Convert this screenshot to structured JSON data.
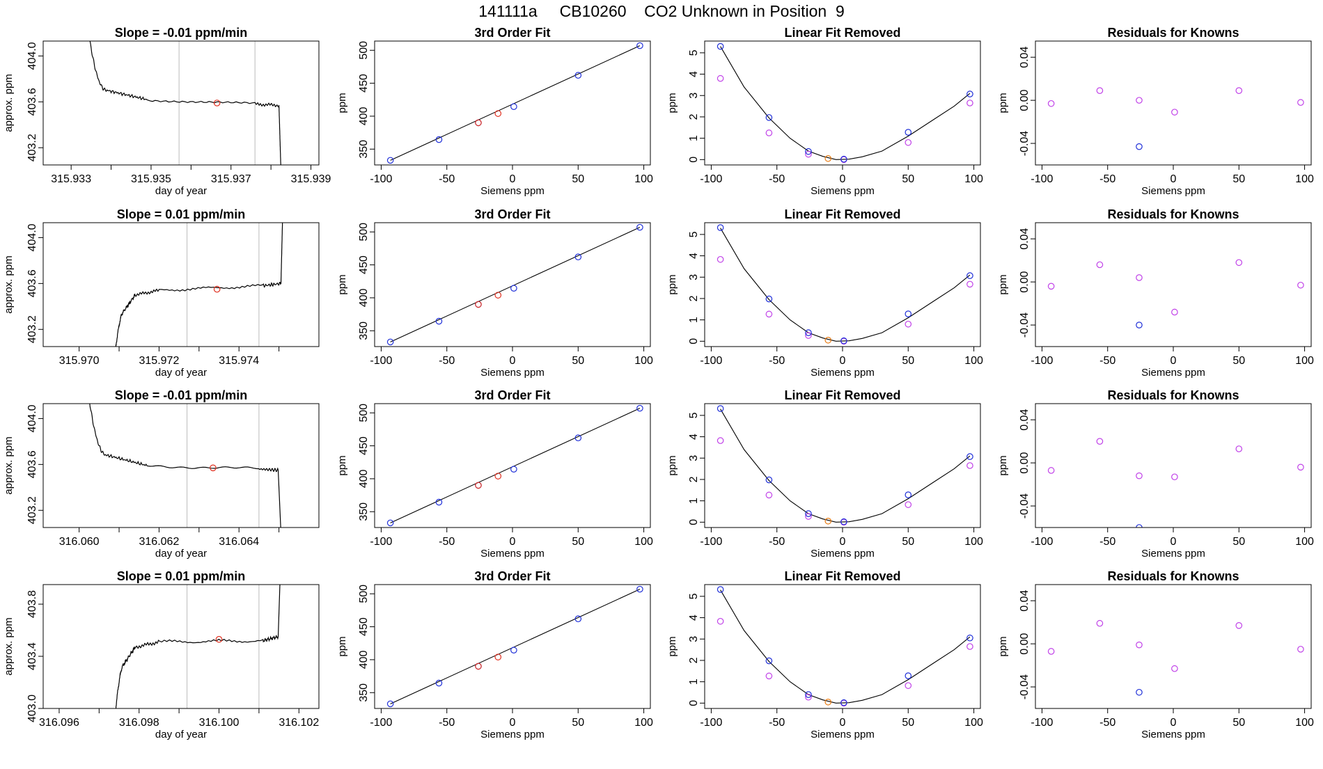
{
  "title": "141111a     CB10260    CO2 Unknown in Position  9",
  "colors": {
    "trace": "#000000",
    "gridline": "#bbbbbb",
    "red": "#e03020",
    "blue": "#1f2fd8",
    "magenta": "#c040e8",
    "orange": "#e87a10"
  },
  "chart_data": [
    {
      "type": "line",
      "row": 1,
      "title": "Slope =  -0.01  ppm/min",
      "xlabel": "day of year",
      "ylabel": "approx. ppm",
      "xlim": [
        315.9323,
        315.9392
      ],
      "ylim": [
        403.05,
        404.13
      ],
      "xticks": [
        "315.933",
        "315.935",
        "315.937",
        "315.939"
      ],
      "xtick_values": [
        315.933,
        315.935,
        315.937,
        315.939
      ],
      "xminor": [
        315.934,
        315.936,
        315.938
      ],
      "yticks": [
        "403.2",
        "403.6",
        "404.0"
      ],
      "ytick_values": [
        403.2,
        403.6,
        404.0
      ],
      "vlines": [
        315.9357,
        315.9376
      ],
      "trend": "down",
      "trace": {
        "x": [
          315.9334,
          315.9339,
          315.9349,
          315.9376,
          315.9382,
          315.93825
        ],
        "y": [
          404.3,
          403.7,
          403.62,
          403.58,
          403.57,
          403.0
        ]
      },
      "red_point": {
        "x": 315.93665,
        "y": 403.59
      }
    },
    {
      "type": "scatter",
      "row": 1,
      "title": "3rd Order Fit",
      "xlabel": "Siemens ppm",
      "ylabel": "ppm",
      "xlim": [
        -105,
        105
      ],
      "ylim": [
        326,
        514
      ],
      "xticks": [
        -100,
        -50,
        0,
        50,
        100
      ],
      "yticks": [
        350,
        400,
        450,
        500
      ],
      "fit_line": {
        "x": [
          -93,
          97
        ],
        "y": [
          333,
          507
        ]
      },
      "blue_points": {
        "x": [
          -93,
          -56,
          -26,
          1,
          50,
          97
        ],
        "y": [
          333,
          364.5,
          390,
          414.5,
          462,
          507
        ]
      },
      "red_points": {
        "x": [
          -26,
          -11
        ],
        "y": [
          390,
          404
        ]
      }
    },
    {
      "type": "scatter",
      "row": 1,
      "title": "Linear Fit Removed",
      "xlabel": "Siemens ppm",
      "ylabel": "ppm",
      "xlim": [
        -105,
        105
      ],
      "ylim": [
        -0.25,
        5.55
      ],
      "xticks": [
        -100,
        -50,
        0,
        50,
        100
      ],
      "yticks": [
        0,
        1,
        2,
        3,
        4,
        5
      ],
      "curve": {
        "x": [
          -93,
          -75,
          -56,
          -40,
          -26,
          -15,
          -5,
          5,
          15,
          30,
          50,
          70,
          85,
          97
        ],
        "y": [
          5.3,
          3.4,
          1.95,
          1.0,
          0.4,
          0.15,
          0.0,
          0.02,
          0.13,
          0.4,
          1.1,
          1.9,
          2.5,
          3.1
        ]
      },
      "blue_points": {
        "x": [
          -93,
          -56,
          -26,
          1,
          50,
          97
        ],
        "y": [
          5.3,
          1.97,
          0.38,
          0.02,
          1.28,
          3.07
        ]
      },
      "magenta_points": {
        "x": [
          -93,
          -56,
          -26,
          1,
          50,
          97
        ],
        "y": [
          3.8,
          1.25,
          0.25,
          0.0,
          0.8,
          2.65
        ]
      },
      "orange_point": {
        "x": -11,
        "y": 0.05
      }
    },
    {
      "type": "scatter",
      "row": 1,
      "title": "Residuals for Knowns",
      "xlabel": "Siemens ppm",
      "ylabel": "ppm",
      "xlim": [
        -105,
        105
      ],
      "ylim": [
        -0.06,
        0.055
      ],
      "xticks": [
        -100,
        -50,
        0,
        50,
        100
      ],
      "yticks": [
        "-0.04",
        "0.00",
        "0.04"
      ],
      "ytick_values": [
        -0.04,
        0.0,
        0.04
      ],
      "magenta_points": {
        "x": [
          -93,
          -56,
          -26,
          1,
          50,
          97
        ],
        "y": [
          -0.003,
          0.009,
          0.0,
          -0.011,
          0.009,
          -0.002
        ]
      },
      "blue_points": {
        "x": [
          -26
        ],
        "y": [
          -0.043
        ]
      }
    },
    {
      "type": "line",
      "row": 2,
      "title": "Slope =  0.01  ppm/min",
      "xlabel": "day of year",
      "ylabel": "approx. ppm",
      "xlim": [
        315.9691,
        315.976
      ],
      "ylim": [
        403.05,
        404.13
      ],
      "xticks": [
        "315.970",
        "315.972",
        "315.974"
      ],
      "xtick_values": [
        315.97,
        315.972,
        315.974
      ],
      "xminor": [
        315.971,
        315.973,
        315.975
      ],
      "yticks": [
        "403.2",
        "403.6",
        "404.0"
      ],
      "ytick_values": [
        403.2,
        403.6,
        404.0
      ],
      "vlines": [
        315.9727,
        315.9745
      ],
      "trend": "up",
      "trace": {
        "x": [
          315.9709,
          315.9711,
          315.9714,
          315.972,
          315.9746,
          315.97505,
          315.9751
        ],
        "y": [
          403.0,
          403.35,
          403.5,
          403.54,
          403.58,
          403.6,
          404.3
        ]
      },
      "red_point": {
        "x": 315.97345,
        "y": 403.55
      }
    },
    {
      "type": "scatter",
      "row": 2,
      "title": "3rd Order Fit",
      "xlabel": "Siemens ppm",
      "ylabel": "ppm",
      "xlim": [
        -105,
        105
      ],
      "ylim": [
        326,
        514
      ],
      "xticks": [
        -100,
        -50,
        0,
        50,
        100
      ],
      "yticks": [
        350,
        400,
        450,
        500
      ],
      "fit_line": {
        "x": [
          -93,
          97
        ],
        "y": [
          333,
          507
        ]
      },
      "blue_points": {
        "x": [
          -93,
          -56,
          -26,
          1,
          50,
          97
        ],
        "y": [
          333,
          364.5,
          390,
          414.5,
          462,
          507
        ]
      },
      "red_points": {
        "x": [
          -26,
          -11
        ],
        "y": [
          390,
          404
        ]
      }
    },
    {
      "type": "scatter",
      "row": 2,
      "title": "Linear Fit Removed",
      "xlabel": "Siemens ppm",
      "ylabel": "ppm",
      "xlim": [
        -105,
        105
      ],
      "ylim": [
        -0.25,
        5.55
      ],
      "xticks": [
        -100,
        -50,
        0,
        50,
        100
      ],
      "yticks": [
        0,
        1,
        2,
        3,
        4,
        5
      ],
      "curve": {
        "x": [
          -93,
          -75,
          -56,
          -40,
          -26,
          -15,
          -5,
          5,
          15,
          30,
          50,
          70,
          85,
          97
        ],
        "y": [
          5.3,
          3.4,
          1.95,
          1.0,
          0.4,
          0.15,
          0.0,
          0.02,
          0.13,
          0.4,
          1.1,
          1.9,
          2.5,
          3.1
        ]
      },
      "blue_points": {
        "x": [
          -93,
          -56,
          -26,
          1,
          50,
          97
        ],
        "y": [
          5.32,
          1.98,
          0.4,
          0.02,
          1.28,
          3.07
        ]
      },
      "magenta_points": {
        "x": [
          -93,
          -56,
          -26,
          1,
          50,
          97
        ],
        "y": [
          3.83,
          1.27,
          0.27,
          0.0,
          0.8,
          2.67
        ]
      },
      "orange_point": {
        "x": -11,
        "y": 0.05
      }
    },
    {
      "type": "scatter",
      "row": 2,
      "title": "Residuals for Knowns",
      "xlabel": "Siemens ppm",
      "ylabel": "ppm",
      "xlim": [
        -105,
        105
      ],
      "ylim": [
        -0.06,
        0.055
      ],
      "xticks": [
        -100,
        -50,
        0,
        50,
        100
      ],
      "yticks": [
        "-0.04",
        "0.00",
        "0.04"
      ],
      "ytick_values": [
        -0.04,
        0.0,
        0.04
      ],
      "magenta_points": {
        "x": [
          -93,
          -56,
          -26,
          1,
          50,
          97
        ],
        "y": [
          -0.004,
          0.016,
          0.004,
          -0.028,
          0.018,
          -0.003
        ]
      },
      "blue_points": {
        "x": [
          -26
        ],
        "y": [
          -0.04
        ]
      }
    },
    {
      "type": "line",
      "row": 3,
      "title": "Slope =  -0.01  ppm/min",
      "xlabel": "day of year",
      "ylabel": "approx. ppm",
      "xlim": [
        316.0591,
        316.066
      ],
      "ylim": [
        403.05,
        404.13
      ],
      "xticks": [
        "316.060",
        "316.062",
        "316.064"
      ],
      "xtick_values": [
        316.06,
        316.062,
        316.064
      ],
      "xminor": [
        316.061,
        316.063,
        316.065
      ],
      "yticks": [
        "403.2",
        "403.6",
        "404.0"
      ],
      "ytick_values": [
        403.2,
        403.6,
        404.0
      ],
      "vlines": [
        316.0627,
        316.0645
      ],
      "trend": "down",
      "trace": {
        "x": [
          316.0602,
          316.0607,
          316.0617,
          316.0645,
          316.06498,
          316.06505
        ],
        "y": [
          404.3,
          403.68,
          403.59,
          403.56,
          403.55,
          403.0
        ]
      },
      "red_point": {
        "x": 316.06335,
        "y": 403.57
      }
    },
    {
      "type": "scatter",
      "row": 3,
      "title": "3rd Order Fit",
      "xlabel": "Siemens ppm",
      "ylabel": "ppm",
      "xlim": [
        -105,
        105
      ],
      "ylim": [
        326,
        514
      ],
      "xticks": [
        -100,
        -50,
        0,
        50,
        100
      ],
      "yticks": [
        350,
        400,
        450,
        500
      ],
      "fit_line": {
        "x": [
          -93,
          97
        ],
        "y": [
          333,
          507
        ]
      },
      "blue_points": {
        "x": [
          -93,
          -56,
          -26,
          1,
          50,
          97
        ],
        "y": [
          333,
          364.5,
          390,
          414.5,
          462,
          507
        ]
      },
      "red_points": {
        "x": [
          -26,
          -11
        ],
        "y": [
          390,
          404
        ]
      }
    },
    {
      "type": "scatter",
      "row": 3,
      "title": "Linear Fit Removed",
      "xlabel": "Siemens ppm",
      "ylabel": "ppm",
      "xlim": [
        -105,
        105
      ],
      "ylim": [
        -0.25,
        5.55
      ],
      "xticks": [
        -100,
        -50,
        0,
        50,
        100
      ],
      "yticks": [
        0,
        1,
        2,
        3,
        4,
        5
      ],
      "curve": {
        "x": [
          -93,
          -75,
          -56,
          -40,
          -26,
          -15,
          -5,
          5,
          15,
          30,
          50,
          70,
          85,
          97
        ],
        "y": [
          5.3,
          3.4,
          1.95,
          1.0,
          0.4,
          0.15,
          0.0,
          0.02,
          0.13,
          0.4,
          1.1,
          1.9,
          2.5,
          3.1
        ]
      },
      "blue_points": {
        "x": [
          -93,
          -56,
          -26,
          1,
          50,
          97
        ],
        "y": [
          5.32,
          1.98,
          0.4,
          0.02,
          1.28,
          3.07
        ]
      },
      "magenta_points": {
        "x": [
          -93,
          -56,
          -26,
          1,
          50,
          97
        ],
        "y": [
          3.82,
          1.27,
          0.27,
          0.0,
          0.82,
          2.65
        ]
      },
      "orange_point": {
        "x": -11,
        "y": 0.05
      }
    },
    {
      "type": "scatter",
      "row": 3,
      "title": "Residuals for Knowns",
      "xlabel": "Siemens ppm",
      "ylabel": "ppm",
      "xlim": [
        -105,
        105
      ],
      "ylim": [
        -0.06,
        0.055
      ],
      "xticks": [
        -100,
        -50,
        0,
        50,
        100
      ],
      "yticks": [
        "-0.04",
        "0.00",
        "0.04"
      ],
      "ytick_values": [
        -0.04,
        0.0,
        0.04
      ],
      "magenta_points": {
        "x": [
          -93,
          -56,
          -26,
          1,
          50,
          97
        ],
        "y": [
          -0.007,
          0.02,
          -0.012,
          -0.013,
          0.013,
          -0.004
        ]
      },
      "blue_points": {
        "x": [
          -26
        ],
        "y": [
          -0.06
        ]
      }
    },
    {
      "type": "line",
      "row": 4,
      "title": "Slope =  0.01  ppm/min",
      "xlabel": "day of year",
      "ylabel": "approx. ppm",
      "xlim": [
        316.0956,
        316.1025
      ],
      "ylim": [
        403.0,
        403.95
      ],
      "xticks": [
        "316.096",
        "316.098",
        "316.100",
        "316.102"
      ],
      "xtick_values": [
        316.096,
        316.098,
        316.1,
        316.102
      ],
      "xminor": [
        316.097,
        316.099,
        316.101
      ],
      "yticks": [
        "403.0",
        "403.4",
        "403.8"
      ],
      "ytick_values": [
        403.0,
        403.4,
        403.8
      ],
      "vlines": [
        316.0992,
        316.101
      ],
      "trend": "up",
      "trace": {
        "x": [
          316.0974,
          316.0976,
          316.0979,
          316.0985,
          316.1011,
          316.10148,
          316.10155
        ],
        "y": [
          402.95,
          403.33,
          403.47,
          403.51,
          403.52,
          403.55,
          404.2
        ]
      },
      "red_point": {
        "x": 316.1,
        "y": 403.53
      }
    },
    {
      "type": "scatter",
      "row": 4,
      "title": "3rd Order Fit",
      "xlabel": "Siemens ppm",
      "ylabel": "ppm",
      "xlim": [
        -105,
        105
      ],
      "ylim": [
        326,
        514
      ],
      "xticks": [
        -100,
        -50,
        0,
        50,
        100
      ],
      "yticks": [
        350,
        400,
        450,
        500
      ],
      "fit_line": {
        "x": [
          -93,
          97
        ],
        "y": [
          333,
          507
        ]
      },
      "blue_points": {
        "x": [
          -93,
          -56,
          -26,
          1,
          50,
          97
        ],
        "y": [
          333,
          364.5,
          390,
          414.5,
          462,
          507
        ]
      },
      "red_points": {
        "x": [
          -26,
          -11
        ],
        "y": [
          390,
          404
        ]
      }
    },
    {
      "type": "scatter",
      "row": 4,
      "title": "Linear Fit Removed",
      "xlabel": "Siemens ppm",
      "ylabel": "ppm",
      "xlim": [
        -105,
        105
      ],
      "ylim": [
        -0.25,
        5.55
      ],
      "xticks": [
        -100,
        -50,
        0,
        50,
        100
      ],
      "yticks": [
        0,
        1,
        2,
        3,
        4,
        5
      ],
      "curve": {
        "x": [
          -93,
          -75,
          -56,
          -40,
          -26,
          -15,
          -5,
          5,
          15,
          30,
          50,
          70,
          85,
          97
        ],
        "y": [
          5.3,
          3.4,
          1.95,
          1.0,
          0.4,
          0.15,
          0.0,
          0.02,
          0.13,
          0.4,
          1.1,
          1.9,
          2.5,
          3.1
        ]
      },
      "blue_points": {
        "x": [
          -93,
          -56,
          -26,
          1,
          50,
          97
        ],
        "y": [
          5.32,
          1.98,
          0.4,
          0.02,
          1.28,
          3.05
        ]
      },
      "magenta_points": {
        "x": [
          -93,
          -56,
          -26,
          1,
          50,
          97
        ],
        "y": [
          3.83,
          1.27,
          0.28,
          0.0,
          0.82,
          2.65
        ]
      },
      "orange_point": {
        "x": -11,
        "y": 0.05
      }
    },
    {
      "type": "scatter",
      "row": 4,
      "title": "Residuals for Knowns",
      "xlabel": "Siemens ppm",
      "ylabel": "ppm",
      "xlim": [
        -105,
        105
      ],
      "ylim": [
        -0.06,
        0.055
      ],
      "xticks": [
        -100,
        -50,
        0,
        50,
        100
      ],
      "yticks": [
        "-0.04",
        "0.00",
        "0.04"
      ],
      "ytick_values": [
        -0.04,
        0.0,
        0.04
      ],
      "magenta_points": {
        "x": [
          -93,
          -56,
          -26,
          1,
          50,
          97
        ],
        "y": [
          -0.007,
          0.019,
          -0.001,
          -0.023,
          0.017,
          -0.005
        ]
      },
      "blue_points": {
        "x": [
          -26
        ],
        "y": [
          -0.045
        ]
      }
    }
  ]
}
